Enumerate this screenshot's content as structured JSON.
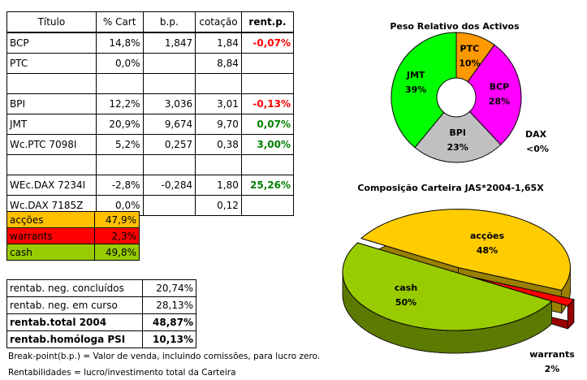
{
  "table": {
    "header": [
      "Título",
      "% Cart",
      "b.p.",
      "cotação",
      "rent.p."
    ],
    "rows": [
      [
        "BCP",
        "14,8%",
        "1,847",
        "1,84",
        "-0,07%"
      ],
      [
        "PTC",
        "0,0%",
        null,
        "8,84",
        null
      ],
      null,
      [
        "BPI",
        "12,2%",
        "3,036",
        "3,01",
        "-0,13%"
      ],
      [
        "JMT",
        "20,9%",
        "9,674",
        "9,70",
        "0,07%"
      ],
      [
        "Wc.PTC 7098I",
        "5,2%",
        "0,257",
        "0,38",
        "3,00%"
      ],
      null,
      [
        "WEc.DAX 7234I",
        "-2,8%",
        "-0,284",
        "1,80",
        "25,26%"
      ],
      [
        "Wc.DAX 7185Z",
        "0,0%",
        null,
        "0,12",
        null
      ]
    ]
  },
  "allocation": {
    "rows": [
      [
        "acções",
        "47,9%"
      ],
      [
        "warrants",
        "2,3%"
      ],
      [
        "cash",
        "49,8%"
      ]
    ],
    "colors": [
      "#ffc000",
      "#ff0000",
      "#99cc00"
    ]
  },
  "returns": {
    "rows": [
      [
        "rentab. neg. concluídos",
        "20,74%"
      ],
      [
        "rentab. neg. em curso",
        "28,13%"
      ],
      [
        "rentab.total 2004",
        "48,87%"
      ],
      [
        "rentab.homóloga PSI",
        "10,13%"
      ]
    ]
  },
  "notes": [
    "Break-point(b.p.) = Valor de venda, incluindo comissões, para lucro zero.",
    "Rentabilidades = lucro/investimento total da Carteira"
  ],
  "chart_data": [
    {
      "type": "donut",
      "title": "Peso Relativo dos Activos",
      "categories": [
        "PTC",
        "BCP",
        "BPI",
        "JMT"
      ],
      "values": [
        10,
        28,
        23,
        39
      ],
      "value_labels": [
        "10%",
        "28%",
        "23%",
        "39%"
      ],
      "colors": [
        "#ff9900",
        "#ff00ff",
        "#c0c0c0",
        "#00ff00"
      ],
      "annotations": [
        "DAX",
        "<0%"
      ]
    },
    {
      "type": "pie3d",
      "title": "Composição Carteira JAS*2004-1,65X",
      "categories": [
        "acções",
        "warrants",
        "cash"
      ],
      "values": [
        48,
        2,
        50
      ],
      "value_labels": [
        "48%",
        "2%",
        "50%"
      ],
      "colors": [
        "#ffcc00",
        "#ff0000",
        "#99cc00"
      ],
      "side_colors": [
        "#998000",
        "#990000",
        "#5c7a00"
      ]
    }
  ]
}
